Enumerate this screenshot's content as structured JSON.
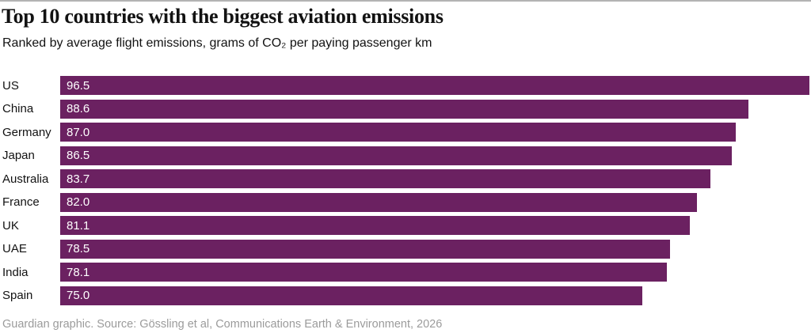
{
  "header": {
    "title": "Top 10 countries with the biggest aviation emissions",
    "subtitle": "Ranked by average flight emissions, grams of CO₂ per paying passenger km"
  },
  "chart_data": {
    "type": "bar",
    "orientation": "horizontal",
    "title": "Top 10 countries with the biggest aviation emissions",
    "subtitle": "Ranked by average flight emissions, grams of CO2 per paying passenger km",
    "xlabel": "",
    "ylabel": "",
    "xlim": [
      0,
      96.5
    ],
    "grid": false,
    "legend": null,
    "bar_color": "#6b2161",
    "value_label_color": "#ffffff",
    "categories": [
      "US",
      "China",
      "Germany",
      "Japan",
      "Australia",
      "France",
      "UK",
      "UAE",
      "India",
      "Spain"
    ],
    "values": [
      96.5,
      88.6,
      87.0,
      86.5,
      83.7,
      82.0,
      81.1,
      78.5,
      78.1,
      75.0
    ],
    "value_labels": [
      "96.5",
      "88.6",
      "87.0",
      "86.5",
      "83.7",
      "82.0",
      "81.1",
      "78.5",
      "78.1",
      "75.0"
    ]
  },
  "footer": {
    "source": "Guardian graphic. Source: Gössling et al, Communications Earth & Environment, 2026"
  }
}
